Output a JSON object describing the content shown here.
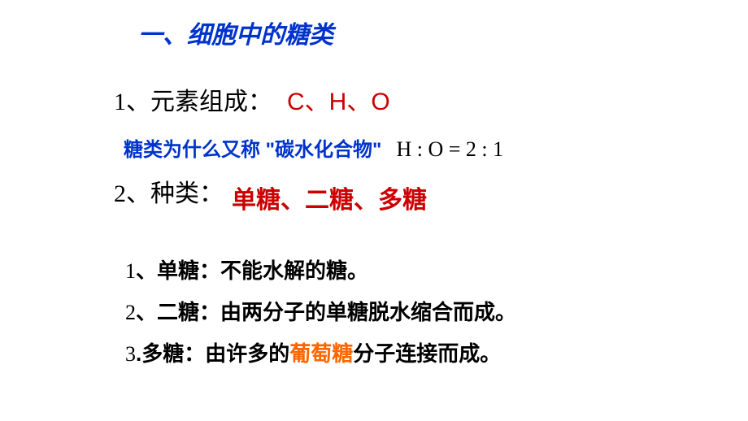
{
  "title": "一、细胞中的糖类",
  "line1": {
    "num": "1",
    "label": "、元素组成：",
    "value": "C、H、O"
  },
  "line2": {
    "question": "糖类为什么又称 \"碳水化合物\"",
    "ratio": "H : O = 2 : 1"
  },
  "line3": {
    "num": "2",
    "label": "、种类：",
    "types": "单糖、二糖、多糖"
  },
  "def1": {
    "num": "1",
    "text": "、单糖：不能水解的糖。"
  },
  "def2": {
    "num": "2",
    "text": "、二糖：由两分子的单糖脱水缩合而成。"
  },
  "def3": {
    "num": "3",
    "prefix": ".多糖：由许多的",
    "highlight": "葡萄糖",
    "suffix": "分子连接而成。"
  },
  "colors": {
    "title_color": "#0033cc",
    "red_text": "#cc0000",
    "blue_text": "#0033cc",
    "black_text": "#000000",
    "highlight_orange": "#ff6600",
    "background": "#ffffff"
  },
  "fonts": {
    "title_size": 30,
    "body_size": 30,
    "question_size": 24,
    "def_size": 26
  }
}
